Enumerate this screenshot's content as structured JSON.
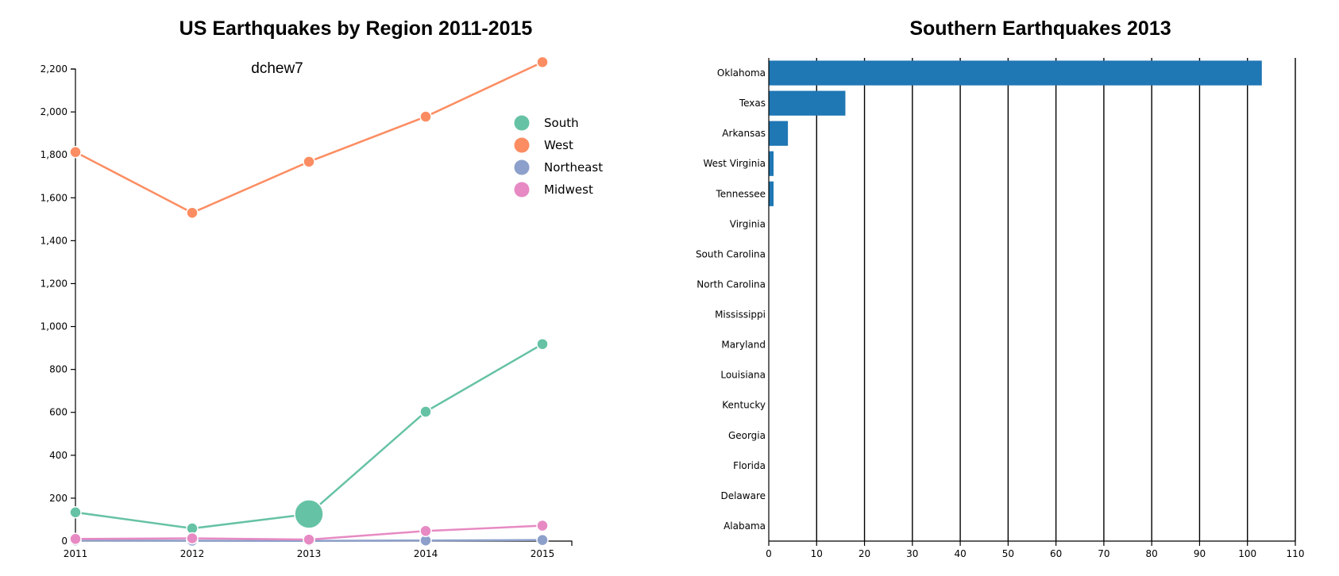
{
  "chart_data": [
    {
      "type": "line",
      "title": "US Earthquakes by Region 2011-2015",
      "subtitle": "dchew7",
      "x": [
        "2011",
        "2012",
        "2013",
        "2014",
        "2015"
      ],
      "ylim": [
        0,
        2200
      ],
      "yticks": [
        0,
        200,
        400,
        600,
        800,
        1000,
        1200,
        1400,
        1600,
        1800,
        2000,
        2200
      ],
      "ytick_labels": [
        "0",
        "200",
        "400",
        "600",
        "800",
        "1,000",
        "1,200",
        "1,400",
        "1,600",
        "1,800",
        "2,000",
        "2,200"
      ],
      "grid": false,
      "legend_position": "top-right",
      "highlight": {
        "series": "South",
        "x": "2013"
      },
      "series": [
        {
          "name": "South",
          "color": "#66c2a5",
          "values": [
            134,
            59,
            126,
            603,
            918
          ]
        },
        {
          "name": "West",
          "color": "#fc8d62",
          "values": [
            1813,
            1530,
            1768,
            1978,
            2232
          ]
        },
        {
          "name": "Northeast",
          "color": "#8da0cb",
          "values": [
            3,
            2,
            1,
            3,
            5
          ]
        },
        {
          "name": "Midwest",
          "color": "#e78ac3",
          "values": [
            10,
            13,
            7,
            47,
            72
          ]
        }
      ]
    },
    {
      "type": "bar",
      "orientation": "horizontal",
      "title": "Southern Earthquakes 2013",
      "color": "#1f77b4",
      "categories": [
        "Oklahoma",
        "Texas",
        "Arkansas",
        "West Virginia",
        "Tennessee",
        "Virginia",
        "South Carolina",
        "North Carolina",
        "Mississippi",
        "Maryland",
        "Louisiana",
        "Kentucky",
        "Georgia",
        "Florida",
        "Delaware",
        "Alabama"
      ],
      "values": [
        103,
        16,
        4,
        1,
        1,
        0,
        0,
        0,
        0,
        0,
        0,
        0,
        0,
        0,
        0,
        0
      ],
      "xlim": [
        0,
        110
      ],
      "xticks": [
        0,
        10,
        20,
        30,
        40,
        50,
        60,
        70,
        80,
        90,
        100,
        110
      ],
      "grid": true
    }
  ]
}
